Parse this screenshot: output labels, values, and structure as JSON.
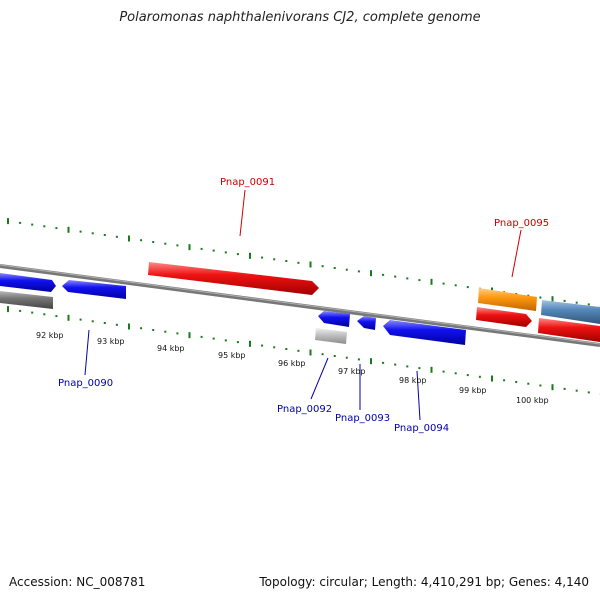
{
  "title": "Polaromonas naphthalenivorans CJ2, complete genome",
  "footer": {
    "accession": "Accession: NC_008781",
    "summary": "Topology: circular; Length: 4,410,291 bp; Genes: 4,140"
  },
  "scale_labels": [
    "92 kbp",
    "93 kbp",
    "94 kbp",
    "95 kbp",
    "96 kbp",
    "97 kbp",
    "98 kbp",
    "99 kbp",
    "100 kbp"
  ],
  "gene_labels": {
    "Pnap_0090": "Pnap_0090",
    "Pnap_0091": "Pnap_0091",
    "Pnap_0092": "Pnap_0092",
    "Pnap_0093": "Pnap_0093",
    "Pnap_0094": "Pnap_0094",
    "Pnap_0095": "Pnap_0095"
  },
  "colors": {
    "forward_label": "#cc0000",
    "reverse_label": "#0000aa",
    "scale_ticks": "#1a7a1a",
    "backbone": "#888888",
    "red": "#ee1111",
    "blue": "#1111ee",
    "orange": "#ff9911",
    "steelblue": "#5588bb",
    "gray": "#777777",
    "lightgray": "#bbbbbb"
  }
}
